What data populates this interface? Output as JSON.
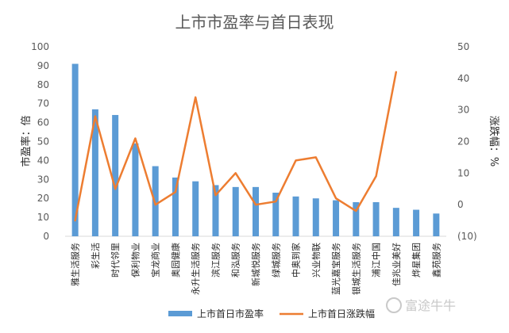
{
  "chart_data": {
    "type": "bar+line",
    "title": "上市市盈率与首日表现",
    "categories": [
      "雅生活服务",
      "彩生活",
      "时代邻里",
      "保利物业",
      "宝龙商业",
      "奥园健康",
      "永升生活服务",
      "滨江服务",
      "和泓服务",
      "新城悦服务",
      "绿城服务",
      "中奥到家",
      "兴业物联",
      "蓝光嘉宝服务",
      "银城生活服务",
      "浦江中国",
      "佳兆业美好",
      "烨星集团",
      "鑫苑服务"
    ],
    "series": [
      {
        "name": "上市首日市盈率",
        "axis": "left",
        "type": "bar",
        "color": "#5b9bd5",
        "values": [
          91,
          67,
          64,
          49,
          37,
          31,
          29,
          27,
          26,
          26,
          23,
          21,
          20,
          19,
          18,
          18,
          15,
          14,
          12
        ]
      },
      {
        "name": "上市首日涨跌幅",
        "axis": "right",
        "type": "line",
        "color": "#ed7d31",
        "values": [
          -5,
          28,
          5,
          21,
          0,
          4,
          34,
          3,
          10,
          0,
          1,
          14,
          15,
          2,
          -2,
          9,
          42,
          null,
          null
        ]
      }
    ],
    "y_left": {
      "label": "市盈率：倍",
      "min": 0,
      "max": 100,
      "step": 10,
      "ticks": [
        "0",
        "10",
        "20",
        "30",
        "40",
        "50",
        "60",
        "70",
        "80",
        "90",
        "100"
      ]
    },
    "y_right": {
      "label": "涨跌幅：%",
      "min": -10,
      "max": 50,
      "step": 10,
      "ticks": [
        "(10)",
        "0",
        "10",
        "20",
        "30",
        "40",
        "50"
      ]
    },
    "legend_position": "bottom",
    "grid": false
  },
  "watermark": "富途牛牛"
}
